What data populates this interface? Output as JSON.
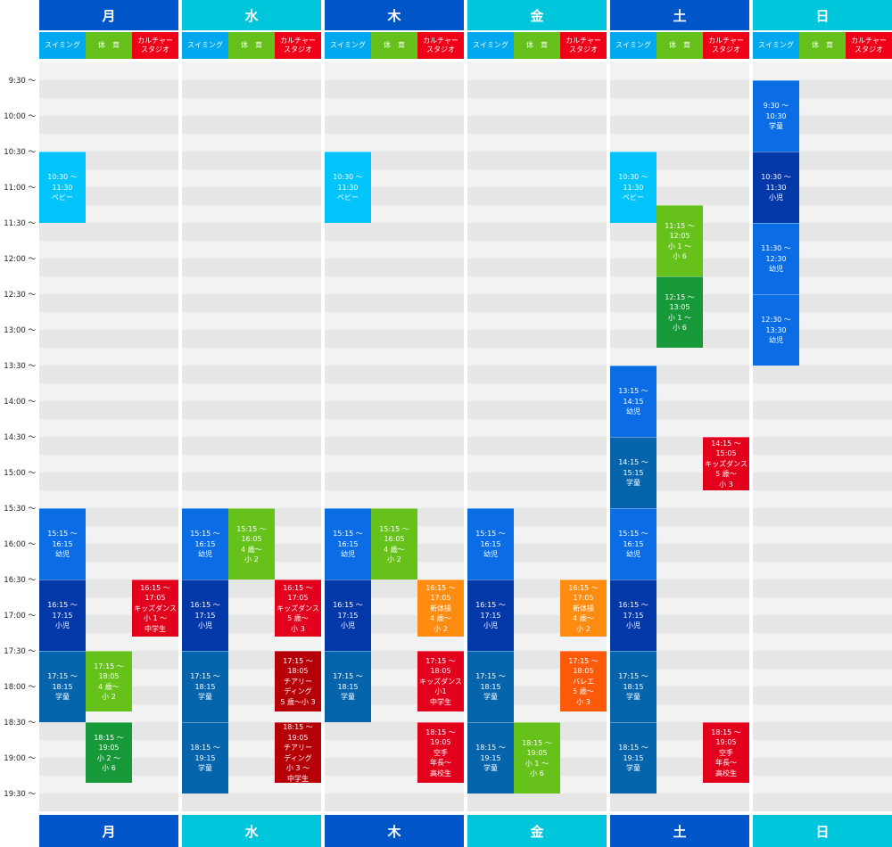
{
  "days": [
    "月",
    "水",
    "木",
    "金",
    "土",
    "日"
  ],
  "categories": [
    "スイミング",
    "体　育",
    "カルチャー\nスタジオ"
  ],
  "colors": {
    "dayhead_dark": "#0055C8",
    "dayhead_light": "#00C6DC",
    "cat_swim": "#00A8F0",
    "cat_pe": "#66C21A",
    "cat_culture": "#F00016",
    "band_dark": "#E6E6E6",
    "band_light": "#F2F2F2",
    "baby": "#00C4FA",
    "toddler": "#0A6DE6",
    "kid": "#0338A8",
    "student": "#0564AC",
    "pe_light": "#66C21A",
    "pe_dark": "#17993A",
    "red": "#E3001C",
    "darkred": "#B50008",
    "orange": "#FF8C10",
    "deeporange": "#FF5A0A"
  },
  "times": [
    "9:30 〜",
    "10:00 〜",
    "10:30 〜",
    "11:00 〜",
    "11:30 〜",
    "12:00 〜",
    "12:30 〜",
    "13:00 〜",
    "13:30 〜",
    "14:00 〜",
    "14:30 〜",
    "15:00 〜",
    "15:30 〜",
    "16:00 〜",
    "16:30 〜",
    "17:00 〜",
    "17:30 〜",
    "18:00 〜",
    "18:30 〜",
    "19:00 〜",
    "19:30 〜"
  ],
  "events": [
    {
      "day": 0,
      "cat": 0,
      "start": 2,
      "end": 4,
      "color": "baby",
      "text": "10:30 〜\n11:30\nベビー"
    },
    {
      "day": 0,
      "cat": 0,
      "start": 12,
      "end": 14,
      "color": "toddler",
      "text": "15:15 〜\n16:15\n幼児"
    },
    {
      "day": 0,
      "cat": 0,
      "start": 14,
      "end": 16,
      "color": "kid",
      "text": "16:15 〜\n17:15\n小児"
    },
    {
      "day": 0,
      "cat": 0,
      "start": 16,
      "end": 18,
      "color": "student",
      "text": "17:15 〜\n18:15\n学童"
    },
    {
      "day": 0,
      "cat": 1,
      "start": 16,
      "end": 17.7,
      "color": "pe_light",
      "text": "17:15 〜\n18:05\n4 歳〜\n小 2"
    },
    {
      "day": 0,
      "cat": 1,
      "start": 18,
      "end": 19.7,
      "color": "pe_dark",
      "text": "18:15 〜\n19:05\n小 2 〜\n小 6"
    },
    {
      "day": 0,
      "cat": 2,
      "start": 14,
      "end": 15.6,
      "color": "red",
      "text": "16:15 〜\n17:05\nキッズダンス\n小 1 〜\n中学生"
    },
    {
      "day": 1,
      "cat": 0,
      "start": 12,
      "end": 14,
      "color": "toddler",
      "text": "15:15 〜\n16:15\n幼児"
    },
    {
      "day": 1,
      "cat": 0,
      "start": 14,
      "end": 16,
      "color": "kid",
      "text": "16:15 〜\n17:15\n小児"
    },
    {
      "day": 1,
      "cat": 0,
      "start": 16,
      "end": 18,
      "color": "student",
      "text": "17:15 〜\n18:15\n学童"
    },
    {
      "day": 1,
      "cat": 0,
      "start": 18,
      "end": 20,
      "color": "student",
      "text": "18:15 〜\n19:15\n学童"
    },
    {
      "day": 1,
      "cat": 1,
      "start": 12,
      "end": 14,
      "color": "pe_light",
      "text": "15:15 〜\n16:05\n4 歳〜\n小 2"
    },
    {
      "day": 1,
      "cat": 2,
      "start": 14,
      "end": 15.6,
      "color": "red",
      "text": "16:15 〜\n17:05\nキッズダンス\n5 歳〜\n小 3"
    },
    {
      "day": 1,
      "cat": 2,
      "start": 16,
      "end": 17.7,
      "color": "darkred",
      "text": "17:15 〜\n18:05\nチアリー\nディング\n5 歳〜小 3"
    },
    {
      "day": 1,
      "cat": 2,
      "start": 18,
      "end": 19.7,
      "color": "darkred",
      "text": "18:15 〜\n19:05\nチアリー\nディング\n小 3 〜\n中学生"
    },
    {
      "day": 2,
      "cat": 0,
      "start": 2,
      "end": 4,
      "color": "baby",
      "text": "10:30 〜\n11:30\nベビー"
    },
    {
      "day": 2,
      "cat": 0,
      "start": 12,
      "end": 14,
      "color": "toddler",
      "text": "15:15 〜\n16:15\n幼児"
    },
    {
      "day": 2,
      "cat": 0,
      "start": 14,
      "end": 16,
      "color": "kid",
      "text": "16:15 〜\n17:15\n小児"
    },
    {
      "day": 2,
      "cat": 0,
      "start": 16,
      "end": 18,
      "color": "student",
      "text": "17:15 〜\n18:15\n学童"
    },
    {
      "day": 2,
      "cat": 1,
      "start": 12,
      "end": 14,
      "color": "pe_light",
      "text": "15:15 〜\n16:05\n4 歳〜\n小 2"
    },
    {
      "day": 2,
      "cat": 2,
      "start": 14,
      "end": 15.6,
      "color": "orange",
      "text": "16:15 〜\n17:05\n新体操\n4 歳〜\n小 2"
    },
    {
      "day": 2,
      "cat": 2,
      "start": 16,
      "end": 17.7,
      "color": "red",
      "text": "17:15 〜\n18:05\nキッズダンス\n小1\n中学生"
    },
    {
      "day": 2,
      "cat": 2,
      "start": 18,
      "end": 19.7,
      "color": "red",
      "text": "18:15 〜\n19:05\n空手\n年長〜\n高校生"
    },
    {
      "day": 3,
      "cat": 0,
      "start": 12,
      "end": 14,
      "color": "toddler",
      "text": "15:15 〜\n16:15\n幼児"
    },
    {
      "day": 3,
      "cat": 0,
      "start": 14,
      "end": 16,
      "color": "kid",
      "text": "16:15 〜\n17:15\n小児"
    },
    {
      "day": 3,
      "cat": 0,
      "start": 16,
      "end": 18,
      "color": "student",
      "text": "17:15 〜\n18:15\n学童"
    },
    {
      "day": 3,
      "cat": 0,
      "start": 18,
      "end": 20,
      "color": "student",
      "text": "18:15 〜\n19:15\n学童"
    },
    {
      "day": 3,
      "cat": 1,
      "start": 18,
      "end": 20,
      "color": "pe_light",
      "text": "18:15 〜\n19:05\n小 1 〜\n小 6"
    },
    {
      "day": 3,
      "cat": 2,
      "start": 14,
      "end": 15.6,
      "color": "orange",
      "text": "16:15 〜\n17:05\n新体操\n4 歳〜\n小 2"
    },
    {
      "day": 3,
      "cat": 2,
      "start": 16,
      "end": 17.7,
      "color": "deeporange",
      "text": "17:15 〜\n18:05\nバレエ\n5 歳〜\n小 3"
    },
    {
      "day": 4,
      "cat": 0,
      "start": 2,
      "end": 4,
      "color": "baby",
      "text": "10:30 〜\n11:30\nベビー"
    },
    {
      "day": 4,
      "cat": 0,
      "start": 8,
      "end": 10,
      "color": "toddler",
      "text": "13:15 〜\n14:15\n幼児"
    },
    {
      "day": 4,
      "cat": 0,
      "start": 10,
      "end": 12,
      "color": "student",
      "text": "14:15 〜\n15:15\n学童"
    },
    {
      "day": 4,
      "cat": 0,
      "start": 12,
      "end": 14,
      "color": "toddler",
      "text": "15:15 〜\n16:15\n幼児"
    },
    {
      "day": 4,
      "cat": 0,
      "start": 14,
      "end": 16,
      "color": "kid",
      "text": "16:15 〜\n17:15\n小児"
    },
    {
      "day": 4,
      "cat": 0,
      "start": 16,
      "end": 18,
      "color": "student",
      "text": "17:15 〜\n18:15\n学童"
    },
    {
      "day": 4,
      "cat": 0,
      "start": 18,
      "end": 20,
      "color": "student",
      "text": "18:15 〜\n19:15\n学童"
    },
    {
      "day": 4,
      "cat": 1,
      "start": 3.5,
      "end": 5.5,
      "color": "pe_light",
      "text": "11:15 〜\n12:05\n小 1 〜\n小 6"
    },
    {
      "day": 4,
      "cat": 1,
      "start": 5.5,
      "end": 7.5,
      "color": "pe_dark",
      "text": "12:15 〜\n13:05\n小 1 〜\n小 6"
    },
    {
      "day": 4,
      "cat": 2,
      "start": 10,
      "end": 11.5,
      "color": "red",
      "text": "14:15 〜\n15:05\nキッズダンス\n5 歳〜\n小 3"
    },
    {
      "day": 4,
      "cat": 2,
      "start": 18,
      "end": 19.7,
      "color": "red",
      "text": "18:15 〜\n19:05\n空手\n年長〜\n高校生"
    },
    {
      "day": 5,
      "cat": 0,
      "start": 0,
      "end": 2,
      "color": "toddler",
      "text": "9:30 〜\n10:30\n学童"
    },
    {
      "day": 5,
      "cat": 0,
      "start": 2,
      "end": 4,
      "color": "kid",
      "text": "10:30 〜\n11:30\n小児"
    },
    {
      "day": 5,
      "cat": 0,
      "start": 4,
      "end": 6,
      "color": "toddler",
      "text": "11:30 〜\n12:30\n幼児"
    },
    {
      "day": 5,
      "cat": 0,
      "start": 6,
      "end": 8,
      "color": "toddler",
      "text": "12:30 〜\n13:30\n幼児"
    }
  ]
}
